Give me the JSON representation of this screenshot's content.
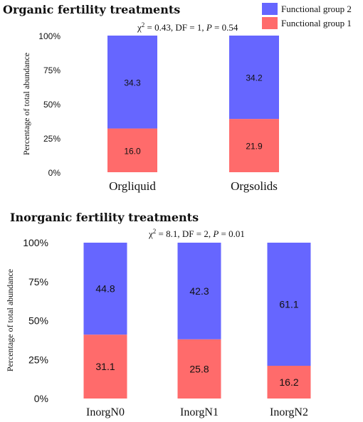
{
  "legend": {
    "items": [
      {
        "label": "Functional group 2",
        "color": "#6666ff"
      },
      {
        "label": "Functional group 1",
        "color": "#ff6b6b"
      }
    ]
  },
  "chart_data": [
    {
      "type": "bar",
      "stacked": true,
      "title": "Organic fertility treatments",
      "annotation": {
        "chi": "χ",
        "sup": "2",
        "rest": " = 0.43, DF = 1, ",
        "p": "P",
        "pval": " = 0.54"
      },
      "ylabel": "Percentage of total abundance",
      "ylim": [
        0,
        100
      ],
      "yticks": [
        "0%",
        "25%",
        "50%",
        "75%",
        "100%"
      ],
      "categories": [
        "Orgliquid",
        "Orgsolids"
      ],
      "series": [
        {
          "name": "Functional group 1",
          "color": "#ff6b6b",
          "percent": [
            32,
            39
          ],
          "labels": [
            "16.0",
            "21.9"
          ]
        },
        {
          "name": "Functional group 2",
          "color": "#6666ff",
          "percent": [
            68,
            61
          ],
          "labels": [
            "34.3",
            "34.2"
          ]
        }
      ]
    },
    {
      "type": "bar",
      "stacked": true,
      "title": "Inorganic fertility treatments",
      "annotation": {
        "chi": "χ",
        "sup": "2",
        "rest": " = 8.1, DF = 2, ",
        "p": "P",
        "pval": " = 0.01"
      },
      "ylabel": "Percentage of total abundance",
      "ylim": [
        0,
        100
      ],
      "yticks": [
        "0%",
        "25%",
        "50%",
        "75%",
        "100%"
      ],
      "categories": [
        "InorgN0",
        "InorgN1",
        "InorgN2"
      ],
      "series": [
        {
          "name": "Functional group 1",
          "color": "#ff6b6b",
          "percent": [
            41,
            38,
            21
          ],
          "labels": [
            "31.1",
            "25.8",
            "16.2"
          ]
        },
        {
          "name": "Functional group 2",
          "color": "#6666ff",
          "percent": [
            59,
            62,
            79
          ],
          "labels": [
            "44.8",
            "42.3",
            "61.1"
          ]
        }
      ]
    }
  ]
}
